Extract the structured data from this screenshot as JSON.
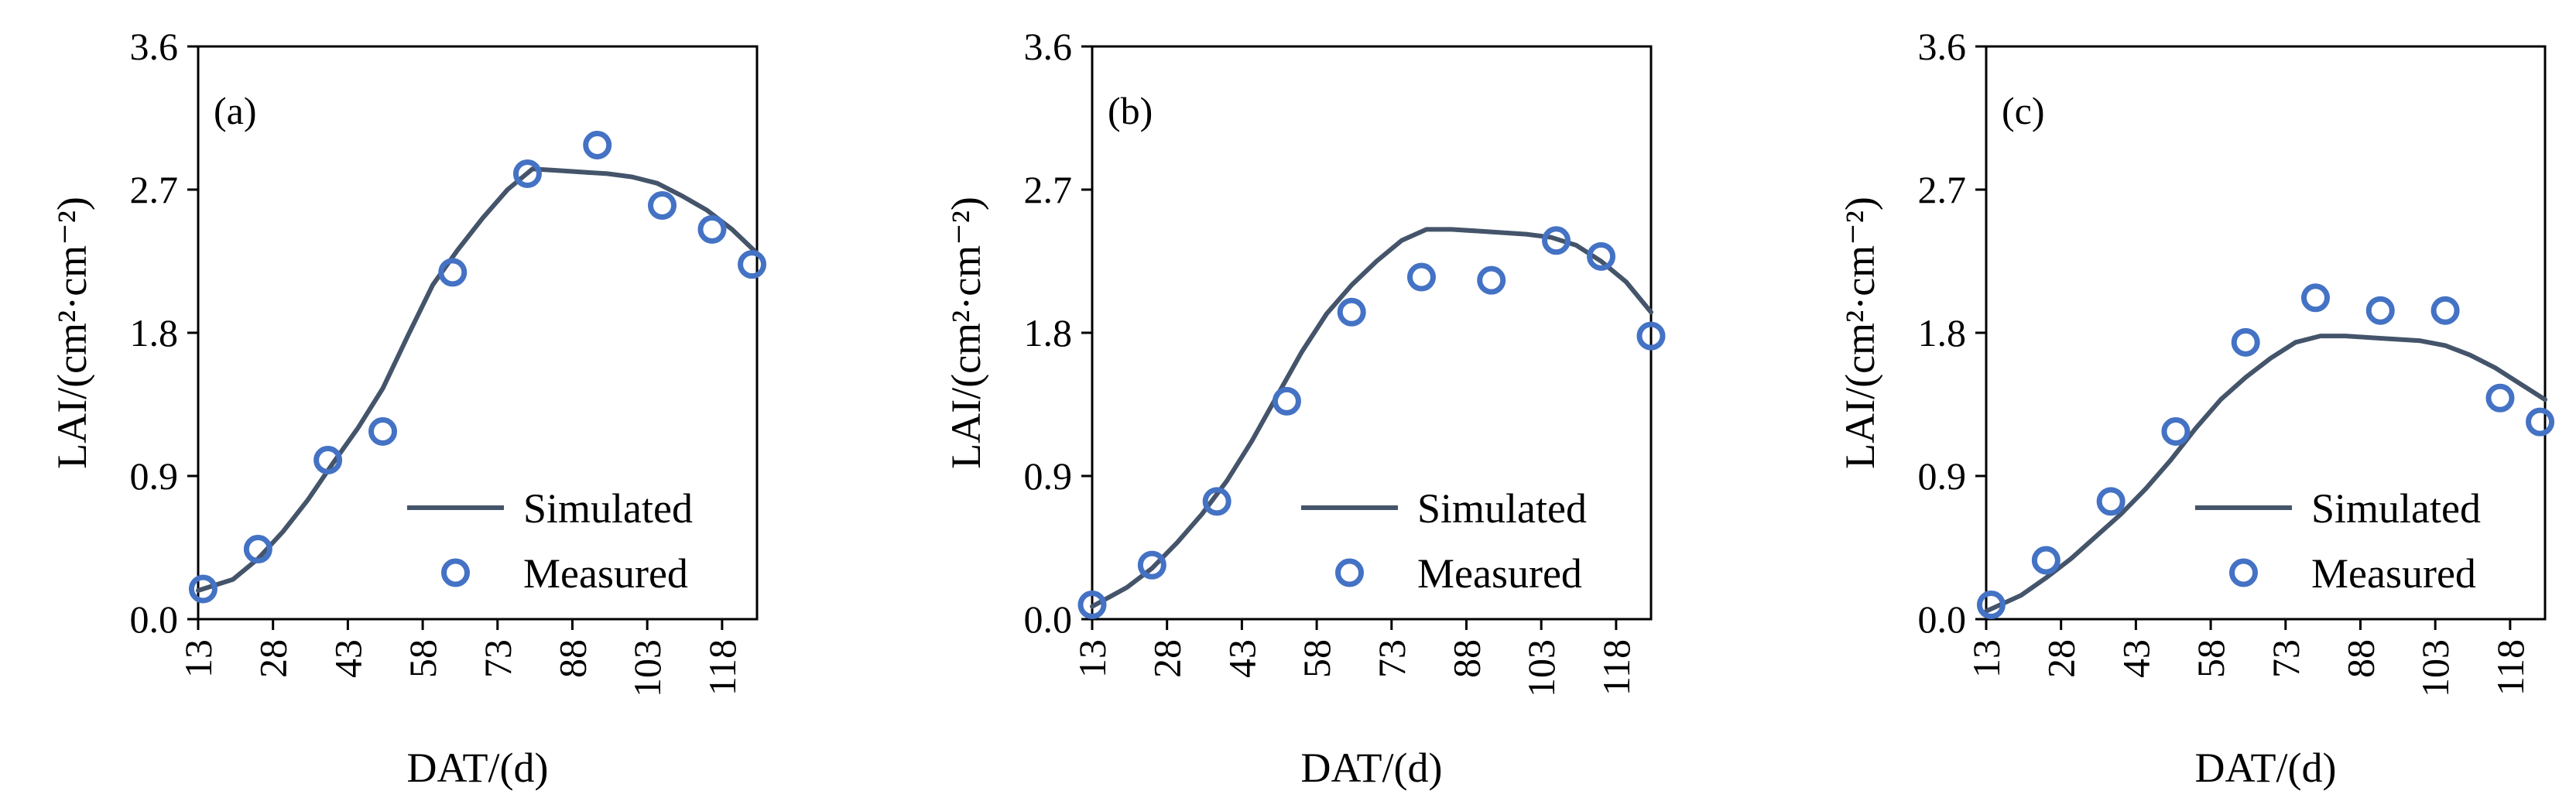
{
  "chart_data": [
    {
      "type": "line",
      "panel_label": "(a)",
      "xlabel": "DAT/(d)",
      "ylabel": "LAI/(cm²·cm⁻²)",
      "xticks": [
        13,
        28,
        43,
        58,
        73,
        88,
        103,
        118
      ],
      "yticks": [
        "0.0",
        "0.9",
        "1.8",
        "2.7",
        "3.6"
      ],
      "xlim": [
        13,
        125
      ],
      "ylim": [
        0,
        3.6
      ],
      "legend_position": "bottom-right",
      "colors": {
        "simulated": "#44546a",
        "measured": "#4472c4"
      },
      "series": [
        {
          "name": "Simulated",
          "style": "line",
          "x": [
            13,
            20,
            25,
            30,
            35,
            40,
            45,
            50,
            55,
            60,
            65,
            70,
            75,
            80,
            85,
            90,
            95,
            100,
            105,
            110,
            115,
            120,
            125
          ],
          "y": [
            0.18,
            0.25,
            0.38,
            0.55,
            0.75,
            0.98,
            1.2,
            1.45,
            1.78,
            2.1,
            2.32,
            2.52,
            2.7,
            2.83,
            2.82,
            2.81,
            2.8,
            2.78,
            2.74,
            2.66,
            2.57,
            2.45,
            2.3
          ]
        },
        {
          "name": "Measured",
          "style": "marker",
          "x": [
            14,
            25,
            39,
            50,
            64,
            79,
            93,
            106,
            116,
            124
          ],
          "y": [
            0.19,
            0.44,
            1.0,
            1.18,
            2.18,
            2.8,
            2.98,
            2.6,
            2.45,
            2.23
          ]
        }
      ]
    },
    {
      "type": "line",
      "panel_label": "(b)",
      "xlabel": "DAT/(d)",
      "ylabel": "LAI/(cm²·cm⁻²)",
      "xticks": [
        13,
        28,
        43,
        58,
        73,
        88,
        103,
        118
      ],
      "yticks": [
        "0.0",
        "0.9",
        "1.8",
        "2.7",
        "3.6"
      ],
      "xlim": [
        13,
        125
      ],
      "ylim": [
        0,
        3.6
      ],
      "legend_position": "bottom-right",
      "colors": {
        "simulated": "#44546a",
        "measured": "#4472c4"
      },
      "series": [
        {
          "name": "Simulated",
          "style": "line",
          "x": [
            13,
            20,
            25,
            30,
            35,
            40,
            45,
            50,
            55,
            60,
            65,
            70,
            75,
            80,
            85,
            90,
            95,
            100,
            105,
            110,
            115,
            120,
            125
          ],
          "y": [
            0.08,
            0.2,
            0.32,
            0.48,
            0.66,
            0.87,
            1.12,
            1.4,
            1.68,
            1.92,
            2.1,
            2.25,
            2.38,
            2.45,
            2.45,
            2.44,
            2.43,
            2.42,
            2.4,
            2.35,
            2.25,
            2.12,
            1.93
          ]
        },
        {
          "name": "Measured",
          "style": "marker",
          "x": [
            13,
            25,
            38,
            52,
            65,
            79,
            93,
            106,
            115,
            125
          ],
          "y": [
            0.09,
            0.34,
            0.74,
            1.37,
            1.93,
            2.15,
            2.13,
            2.38,
            2.28,
            1.78
          ]
        }
      ]
    },
    {
      "type": "line",
      "panel_label": "(c)",
      "xlabel": "DAT/(d)",
      "ylabel": "LAI/(cm²·cm⁻²)",
      "xticks": [
        13,
        28,
        43,
        58,
        73,
        88,
        103,
        118
      ],
      "yticks": [
        "0.0",
        "0.9",
        "1.8",
        "2.7",
        "3.6"
      ],
      "xlim": [
        13,
        125
      ],
      "ylim": [
        0,
        3.6
      ],
      "legend_position": "bottom-right",
      "colors": {
        "simulated": "#44546a",
        "measured": "#4472c4"
      },
      "series": [
        {
          "name": "Simulated",
          "style": "line",
          "x": [
            13,
            20,
            25,
            30,
            35,
            40,
            45,
            50,
            55,
            60,
            65,
            70,
            75,
            80,
            85,
            90,
            95,
            100,
            105,
            110,
            115,
            120,
            125
          ],
          "y": [
            0.05,
            0.15,
            0.26,
            0.38,
            0.52,
            0.66,
            0.82,
            1.0,
            1.2,
            1.38,
            1.52,
            1.64,
            1.74,
            1.78,
            1.78,
            1.77,
            1.76,
            1.75,
            1.72,
            1.66,
            1.58,
            1.48,
            1.38
          ]
        },
        {
          "name": "Measured",
          "style": "marker",
          "x": [
            14,
            25,
            38,
            51,
            65,
            79,
            92,
            105,
            116,
            124
          ],
          "y": [
            0.09,
            0.37,
            0.74,
            1.18,
            1.74,
            2.02,
            1.94,
            1.94,
            1.39,
            1.24
          ]
        }
      ]
    }
  ]
}
